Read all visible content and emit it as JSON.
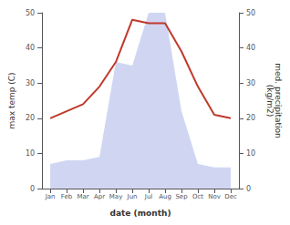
{
  "chart_data": {
    "type": "line",
    "categories": [
      "Jan",
      "Feb",
      "Mar",
      "Apr",
      "May",
      "Jun",
      "Jul",
      "Aug",
      "Sep",
      "Oct",
      "Nov",
      "Dec"
    ],
    "xlabel": "date (month)",
    "ylabel": "max temp (C)",
    "y2label": "med. precipitation\n(kg/m2)",
    "series": [
      {
        "type": "line",
        "color": "#c0392b",
        "values": [
          20,
          22,
          24,
          29,
          36,
          48,
          47,
          47,
          39,
          29,
          21,
          20
        ]
      },
      {
        "type": "area",
        "color": "#aab4e8",
        "axis": "y2",
        "values": [
          7,
          8,
          8,
          9,
          36,
          35,
          50,
          50,
          22,
          7,
          6,
          6
        ]
      }
    ],
    "ylim": [
      0,
      50
    ],
    "yticks": [
      0,
      10,
      20,
      30,
      40,
      50
    ],
    "y2lim": [
      0,
      50
    ],
    "y2ticks": [
      0,
      10,
      20,
      30,
      40,
      50
    ],
    "grid": false
  }
}
